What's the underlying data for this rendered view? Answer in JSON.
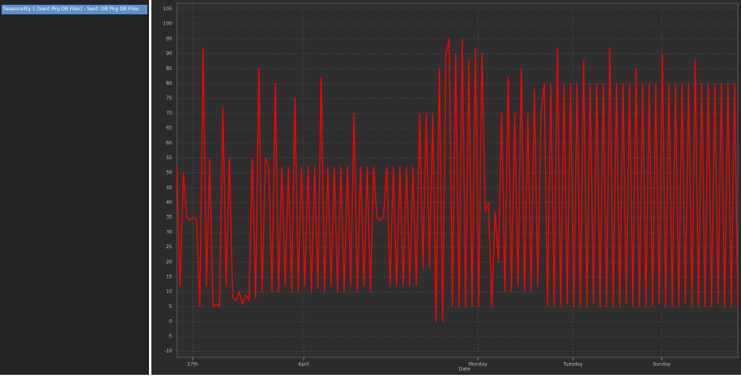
{
  "sidebar": {
    "items": [
      "Seasonality 1 [Sent Pkg DB Files] - Sent: DB Pkg DB Files"
    ]
  },
  "chart_data": {
    "type": "line",
    "x_label": "Date",
    "xlim": [
      0,
      177
    ],
    "xticks": [
      {
        "value": 5,
        "label": "27th"
      },
      {
        "value": 40,
        "label": "April"
      },
      {
        "value": 95,
        "label": "Monday"
      },
      {
        "value": 125,
        "label": "Tuesday"
      },
      {
        "value": 153,
        "label": "Sunday"
      }
    ],
    "ylim": [
      -12,
      107
    ],
    "yticks": [
      105,
      100,
      95,
      90,
      85,
      80,
      75,
      70,
      65,
      60,
      55,
      50,
      45,
      40,
      35,
      30,
      25,
      20,
      15,
      10,
      5,
      0,
      -5,
      -10
    ],
    "grid": true,
    "series": [
      {
        "color": "#ff0000",
        "values": [
          52,
          12,
          50,
          35,
          34,
          35,
          34,
          5,
          92,
          12,
          55,
          5,
          6,
          5,
          72,
          12,
          55,
          8,
          7,
          10,
          6,
          9,
          7,
          55,
          8,
          85,
          10,
          55,
          52,
          10,
          80,
          10,
          52,
          12,
          52,
          10,
          75,
          10,
          52,
          12,
          52,
          10,
          52,
          11,
          82,
          10,
          52,
          12,
          52,
          10,
          52,
          10,
          52,
          12,
          70,
          10,
          52,
          12,
          52,
          10,
          52,
          35,
          34,
          35,
          52,
          12,
          52,
          12,
          52,
          12,
          52,
          12,
          52,
          12,
          70,
          18,
          70,
          18,
          70,
          0,
          85,
          0,
          90,
          95,
          5,
          90,
          5,
          95,
          5,
          88,
          5,
          92,
          5,
          90,
          37,
          40,
          5,
          37,
          20,
          70,
          10,
          82,
          10,
          70,
          12,
          85,
          10,
          70,
          10,
          78,
          12,
          70,
          80,
          5,
          80,
          5,
          92,
          5,
          80,
          6,
          80,
          5,
          80,
          5,
          88,
          5,
          80,
          6,
          80,
          5,
          80,
          5,
          92,
          5,
          80,
          5,
          80,
          6,
          80,
          5,
          85,
          5,
          80,
          5,
          80,
          5,
          80,
          6,
          90,
          5,
          80,
          5,
          80,
          5,
          80,
          6,
          80,
          5,
          88,
          5,
          80,
          5,
          80,
          5,
          80,
          6,
          80,
          5,
          80,
          5,
          80,
          5
        ]
      }
    ]
  }
}
